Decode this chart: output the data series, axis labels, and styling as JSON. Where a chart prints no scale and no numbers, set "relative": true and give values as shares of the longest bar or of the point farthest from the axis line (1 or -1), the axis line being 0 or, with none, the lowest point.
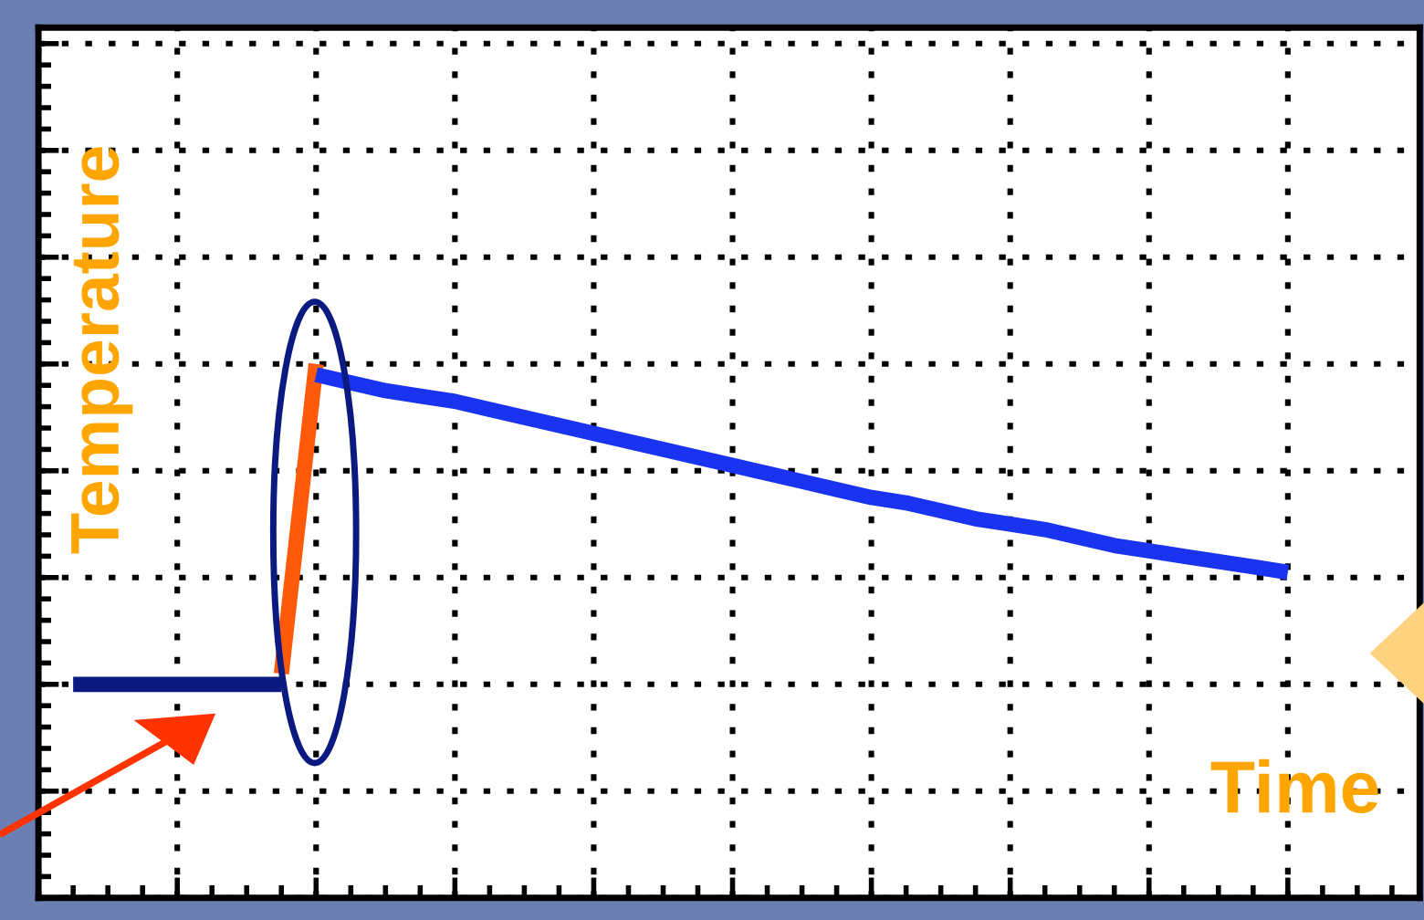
{
  "chart_data": {
    "type": "line",
    "xlabel": "Time",
    "ylabel": "Temperature",
    "relative": true,
    "grid": true,
    "tick_labels": false,
    "categories": [
      null,
      null,
      null,
      null,
      null,
      null,
      null,
      null,
      null,
      null,
      null,
      null,
      null,
      null,
      null,
      null,
      null,
      null,
      null,
      null,
      null,
      null,
      null,
      null,
      null,
      null,
      null,
      null,
      null,
      null,
      null,
      null,
      null,
      null,
      null,
      null,
      null,
      null,
      null,
      null
    ],
    "series": [
      {
        "color": "#0a1a80",
        "values": [
          null,
          0.4,
          0.4,
          0.4,
          0.4,
          0.4,
          0.4,
          0.4,
          null,
          null,
          null,
          null,
          null,
          null,
          null,
          null,
          null,
          null,
          null,
          null,
          null,
          null,
          null,
          null,
          null,
          null,
          null,
          null,
          null,
          null,
          null,
          null,
          null,
          null,
          null,
          null,
          null,
          null,
          null,
          null
        ]
      },
      {
        "color": "#ff5a0a",
        "values": [
          null,
          null,
          null,
          null,
          null,
          null,
          null,
          0.42,
          1.0,
          null,
          null,
          null,
          null,
          null,
          null,
          null,
          null,
          null,
          null,
          null,
          null,
          null,
          null,
          null,
          null,
          null,
          null,
          null,
          null,
          null,
          null,
          null,
          null,
          null,
          null,
          null,
          null,
          null,
          null,
          null
        ]
      },
      {
        "color": "#1a33f0",
        "values": [
          null,
          null,
          null,
          null,
          null,
          null,
          null,
          null,
          0.98,
          0.965,
          0.95,
          0.94,
          0.93,
          0.915,
          0.9,
          0.885,
          0.87,
          0.855,
          0.84,
          0.825,
          0.81,
          0.795,
          0.78,
          0.765,
          0.75,
          0.74,
          0.725,
          0.71,
          0.7,
          0.69,
          0.675,
          0.66,
          0.65,
          0.64,
          0.63,
          0.62,
          0.61,
          null,
          null,
          null
        ]
      }
    ]
  }
}
